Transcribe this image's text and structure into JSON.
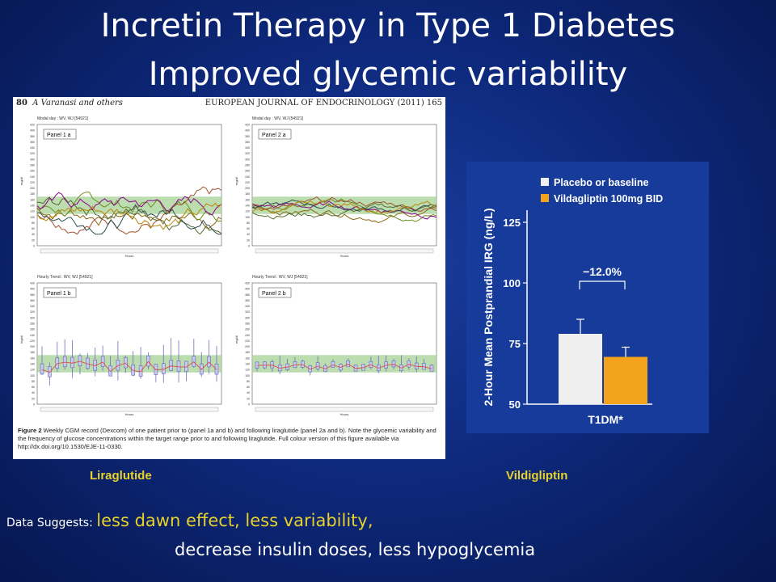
{
  "slide": {
    "title_line1": "Incretin Therapy in Type 1 Diabetes",
    "title_line2": "Improved glycemic variability"
  },
  "paper": {
    "page_number": "80",
    "authors": "A Varanasi and others",
    "journal": "EUROPEAN JOURNAL OF ENDOCRINOLOGY (2011) 165",
    "panels": [
      {
        "label": "Panel 1 a",
        "header": "Modal day : WV, WJ [54921]"
      },
      {
        "label": "Panel 2 a",
        "header": "Modal day : WV, WJ [54921]"
      },
      {
        "label": "Panel 1 b",
        "header": "Hourly Trend : WV, WJ [54921]"
      },
      {
        "label": "Panel 2 b",
        "header": "Hourly Trend : WV, WJ [54921]"
      }
    ],
    "y_axis_label": "mg/dl",
    "x_axis_label": "Hours",
    "caption_bold": "Figure 2",
    "caption_text": "Weekly CGM record (Dexcom) of one patient prior to (panel 1a and b) and following liraglutide (panel 2a and b). Note the glycemic variability and the frequency of glucose concentrations within the target range prior to and following liraglutide. Full colour version of this figure available via http://dx.doi.org/10.1530/EJE-11-0330."
  },
  "chart_data": {
    "type": "bar",
    "categories": [
      "T1DM*"
    ],
    "series": [
      {
        "name": "Placebo or baseline",
        "values": [
          79
        ],
        "error": [
          6
        ],
        "color": "#efefef"
      },
      {
        "name": "Vildagliptin 100mg BID",
        "values": [
          69.5
        ],
        "error": [
          4
        ],
        "color": "#f4a41c"
      }
    ],
    "ylabel": "2-Hour Mean Postprandial IRG (ng/L)",
    "yticks": [
      "50",
      "75",
      "100",
      "125"
    ],
    "ylim": [
      50,
      130
    ],
    "annotation": "−12.0%",
    "legend_position": "top"
  },
  "labels": {
    "left": "Liraglutide",
    "right": "Vildigliptin"
  },
  "summary": {
    "prefix": "Data Suggests: ",
    "highlight": "less dawn effect, less variability,",
    "line2": "decrease insulin  doses, less hypoglycemia"
  }
}
